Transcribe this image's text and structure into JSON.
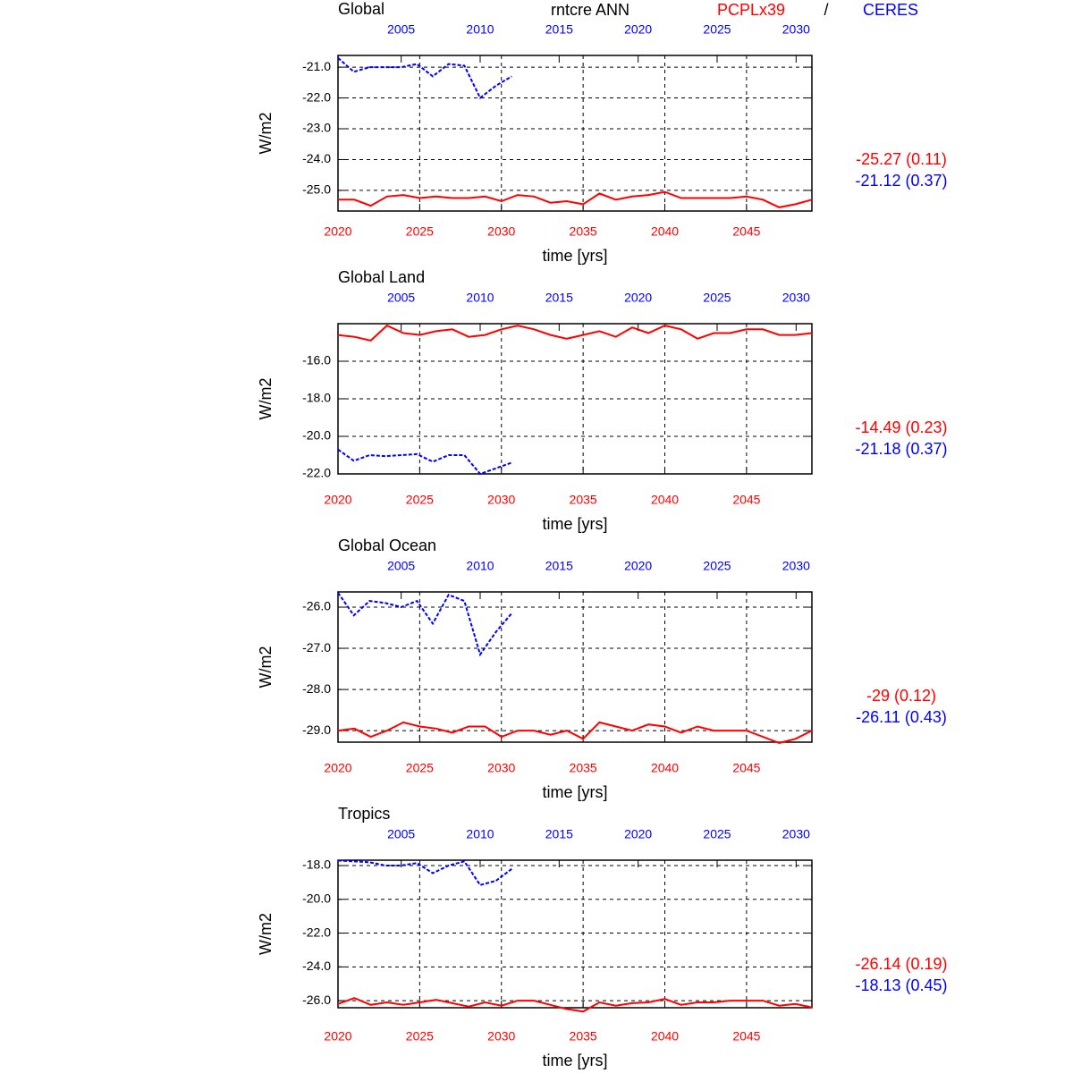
{
  "header": {
    "variable": "rntcre ANN",
    "separator": "/"
  },
  "legend": [
    {
      "name": "PCPLx39",
      "color": "#ff0000"
    },
    {
      "name": "CERES",
      "color": "#0000ff"
    }
  ],
  "chart_data": [
    {
      "type": "line",
      "title": "Global",
      "ylabel": "W/m2",
      "xlabel": "time [yrs]",
      "xlim": [
        2020,
        2049
      ],
      "xticks": [
        2020,
        2025,
        2030,
        2035,
        2040,
        2045
      ],
      "x2lim": [
        2001,
        2031
      ],
      "x2ticks": [
        2005,
        2010,
        2015,
        2020,
        2025,
        2030
      ],
      "ylim": [
        -25.67,
        -20.62
      ],
      "yticks": [
        {
          "value": -21,
          "label": "-21.0"
        },
        {
          "value": -22,
          "label": "-22.0"
        },
        {
          "value": -23,
          "label": "-23.0"
        },
        {
          "value": -24,
          "label": "-24.0"
        },
        {
          "value": -25,
          "label": "-25.0"
        }
      ],
      "grid": true,
      "series": [
        {
          "color": "#ff0000",
          "style": "solid",
          "stat": "-25.27 (0.11)",
          "x": [
            2020,
            2021,
            2022,
            2023,
            2024,
            2025,
            2026,
            2027,
            2028,
            2029,
            2030,
            2031,
            2032,
            2033,
            2034,
            2035,
            2036,
            2037,
            2038,
            2039,
            2040,
            2041,
            2042,
            2043,
            2044,
            2045,
            2046,
            2047,
            2048,
            2049
          ],
          "values": [
            -25.3,
            -25.3,
            -25.5,
            -25.2,
            -25.15,
            -25.25,
            -25.2,
            -25.25,
            -25.25,
            -25.2,
            -25.35,
            -25.15,
            -25.2,
            -25.4,
            -25.35,
            -25.45,
            -25.1,
            -25.3,
            -25.2,
            -25.15,
            -25.05,
            -25.25,
            -25.25,
            -25.25,
            -25.25,
            -25.2,
            -25.3,
            -25.55,
            -25.45,
            -25.3
          ]
        },
        {
          "color": "#0000ff",
          "style": "dashed",
          "axis": "x2",
          "stat": "-21.12 (0.37)",
          "x": [
            2001,
            2002,
            2003,
            2004,
            2005,
            2006,
            2007,
            2008,
            2009,
            2010,
            2011,
            2012
          ],
          "values": [
            -20.7,
            -21.15,
            -21.0,
            -21.0,
            -21.0,
            -20.9,
            -21.3,
            -20.9,
            -20.95,
            -22.0,
            -21.6,
            -21.3
          ]
        }
      ]
    },
    {
      "type": "line",
      "title": "Global Land",
      "ylabel": "W/m2",
      "xlabel": "time [yrs]",
      "xlim": [
        2020,
        2049
      ],
      "xticks": [
        2020,
        2025,
        2030,
        2035,
        2040,
        2045
      ],
      "x2lim": [
        2001,
        2031
      ],
      "x2ticks": [
        2005,
        2010,
        2015,
        2020,
        2025,
        2030
      ],
      "ylim": [
        -22,
        -14
      ],
      "yticks": [
        {
          "value": -16,
          "label": "-16.0"
        },
        {
          "value": -18,
          "label": "-18.0"
        },
        {
          "value": -20,
          "label": "-20.0"
        },
        {
          "value": -22,
          "label": "-22.0"
        }
      ],
      "grid": true,
      "series": [
        {
          "color": "#ff0000",
          "style": "solid",
          "stat": "-14.49 (0.23)",
          "x": [
            2020,
            2021,
            2022,
            2023,
            2024,
            2025,
            2026,
            2027,
            2028,
            2029,
            2030,
            2031,
            2032,
            2033,
            2034,
            2035,
            2036,
            2037,
            2038,
            2039,
            2040,
            2041,
            2042,
            2043,
            2044,
            2045,
            2046,
            2047,
            2048,
            2049
          ],
          "values": [
            -14.6,
            -14.7,
            -14.9,
            -14.1,
            -14.5,
            -14.6,
            -14.4,
            -14.3,
            -14.7,
            -14.6,
            -14.3,
            -14.1,
            -14.3,
            -14.6,
            -14.8,
            -14.6,
            -14.4,
            -14.7,
            -14.2,
            -14.5,
            -14.1,
            -14.3,
            -14.8,
            -14.5,
            -14.5,
            -14.3,
            -14.3,
            -14.6,
            -14.6,
            -14.5
          ]
        },
        {
          "color": "#0000ff",
          "style": "dashed",
          "axis": "x2",
          "stat": "-21.18 (0.37)",
          "x": [
            2001,
            2002,
            2003,
            2004,
            2005,
            2006,
            2007,
            2008,
            2009,
            2010,
            2011,
            2012
          ],
          "values": [
            -20.7,
            -21.3,
            -21.0,
            -21.05,
            -21.0,
            -20.95,
            -21.35,
            -21.0,
            -21.0,
            -22.0,
            -21.7,
            -21.4
          ]
        }
      ]
    },
    {
      "type": "line",
      "title": "Global Ocean",
      "ylabel": "W/m2",
      "xlabel": "time [yrs]",
      "xlim": [
        2020,
        2049
      ],
      "xticks": [
        2020,
        2025,
        2030,
        2035,
        2040,
        2045
      ],
      "x2lim": [
        2001,
        2031
      ],
      "x2ticks": [
        2005,
        2010,
        2015,
        2020,
        2025,
        2030
      ],
      "ylim": [
        -29.28,
        -25.63
      ],
      "yticks": [
        {
          "value": -26,
          "label": "-26.0"
        },
        {
          "value": -27,
          "label": "-27.0"
        },
        {
          "value": -28,
          "label": "-28.0"
        },
        {
          "value": -29,
          "label": "-29.0"
        }
      ],
      "grid": true,
      "series": [
        {
          "color": "#ff0000",
          "style": "solid",
          "stat": "-29 (0.12)",
          "x": [
            2020,
            2021,
            2022,
            2023,
            2024,
            2025,
            2026,
            2027,
            2028,
            2029,
            2030,
            2031,
            2032,
            2033,
            2034,
            2035,
            2036,
            2037,
            2038,
            2039,
            2040,
            2041,
            2042,
            2043,
            2044,
            2045,
            2046,
            2047,
            2048,
            2049
          ],
          "values": [
            -29.0,
            -28.95,
            -29.15,
            -29.0,
            -28.8,
            -28.9,
            -28.95,
            -29.05,
            -28.9,
            -28.9,
            -29.15,
            -29.0,
            -29.0,
            -29.1,
            -29.0,
            -29.2,
            -28.8,
            -28.9,
            -29.0,
            -28.85,
            -28.9,
            -29.05,
            -28.9,
            -29.0,
            -29.0,
            -29.0,
            -29.15,
            -29.3,
            -29.2,
            -29.0
          ]
        },
        {
          "color": "#0000ff",
          "style": "dashed",
          "axis": "x2",
          "stat": "-26.11 (0.43)",
          "x": [
            2001,
            2002,
            2003,
            2004,
            2005,
            2006,
            2007,
            2008,
            2009,
            2010,
            2011,
            2012
          ],
          "values": [
            -25.65,
            -26.2,
            -25.85,
            -25.9,
            -26.0,
            -25.85,
            -26.4,
            -25.7,
            -25.85,
            -27.15,
            -26.6,
            -26.15
          ]
        }
      ]
    },
    {
      "type": "line",
      "title": "Tropics",
      "ylabel": "W/m2",
      "xlabel": "time [yrs]",
      "xlim": [
        2020,
        2049
      ],
      "xticks": [
        2020,
        2025,
        2030,
        2035,
        2040,
        2045
      ],
      "x2lim": [
        2001,
        2031
      ],
      "x2ticks": [
        2005,
        2010,
        2015,
        2020,
        2025,
        2030
      ],
      "ylim": [
        -26.42,
        -17.68
      ],
      "yticks": [
        {
          "value": -18,
          "label": "-18.0"
        },
        {
          "value": -20,
          "label": "-20.0"
        },
        {
          "value": -22,
          "label": "-22.0"
        },
        {
          "value": -24,
          "label": "-24.0"
        },
        {
          "value": -26,
          "label": "-26.0"
        }
      ],
      "grid": true,
      "series": [
        {
          "color": "#ff0000",
          "style": "solid",
          "stat": "-26.14 (0.19)",
          "x": [
            2020,
            2021,
            2022,
            2023,
            2024,
            2025,
            2026,
            2027,
            2028,
            2029,
            2030,
            2031,
            2032,
            2033,
            2034,
            2035,
            2036,
            2037,
            2038,
            2039,
            2040,
            2041,
            2042,
            2043,
            2044,
            2045,
            2046,
            2047,
            2048,
            2049
          ],
          "values": [
            -26.2,
            -25.85,
            -26.25,
            -26.1,
            -26.25,
            -26.1,
            -25.95,
            -26.15,
            -26.35,
            -26.1,
            -26.3,
            -26.0,
            -26.0,
            -26.25,
            -26.5,
            -26.65,
            -26.1,
            -26.3,
            -26.15,
            -26.1,
            -25.9,
            -26.25,
            -26.1,
            -26.1,
            -26.0,
            -26.0,
            -26.0,
            -26.3,
            -26.2,
            -26.4
          ]
        },
        {
          "color": "#0000ff",
          "style": "dashed",
          "axis": "x2",
          "stat": "-18.13 (0.45)",
          "x": [
            2001,
            2002,
            2003,
            2004,
            2005,
            2006,
            2007,
            2008,
            2009,
            2010,
            2011,
            2012
          ],
          "values": [
            -17.7,
            -17.75,
            -17.8,
            -18.0,
            -18.0,
            -17.85,
            -18.45,
            -18.0,
            -17.75,
            -19.15,
            -18.9,
            -18.2
          ]
        }
      ]
    }
  ]
}
